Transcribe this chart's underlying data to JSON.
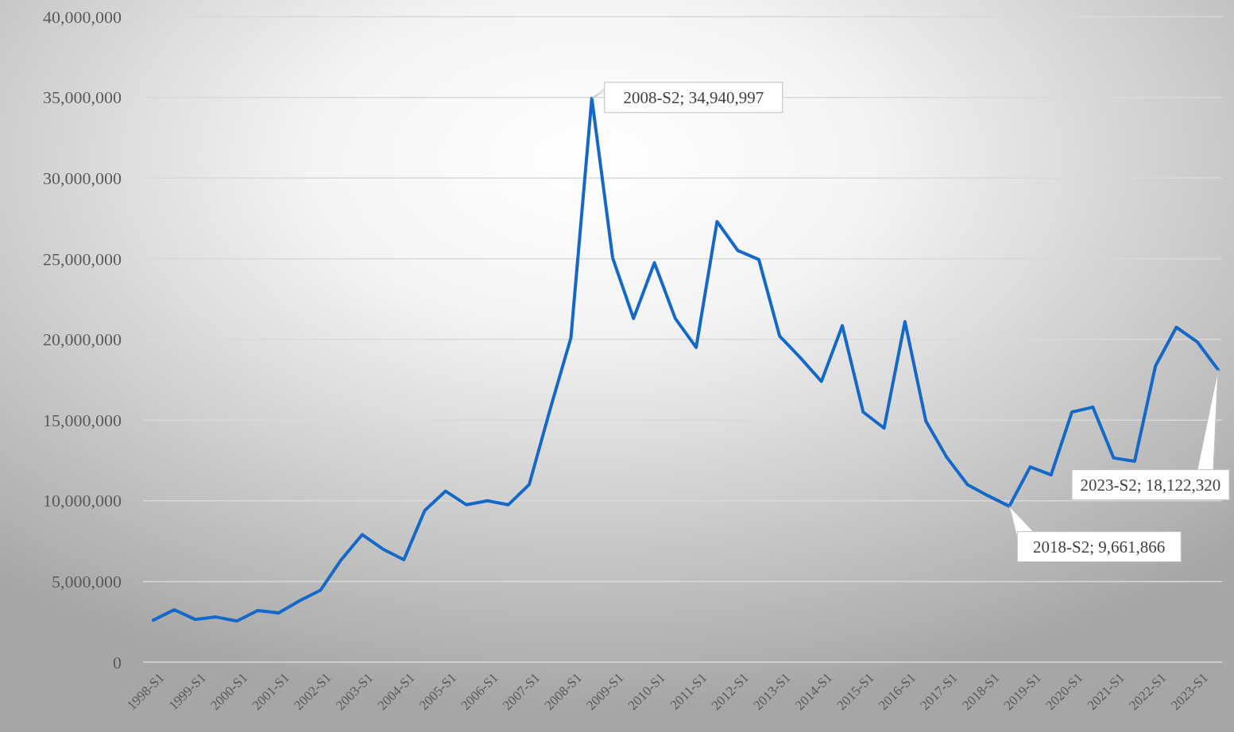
{
  "chart_data": {
    "type": "line",
    "categories": [
      "1998-S1",
      null,
      "1999-S1",
      null,
      "2000-S1",
      null,
      "2001-S1",
      null,
      "2002-S1",
      null,
      "2003-S1",
      null,
      "2004-S1",
      null,
      "2005-S1",
      null,
      "2006-S1",
      null,
      "2007-S1",
      null,
      "2008-S1",
      null,
      "2009-S1",
      null,
      "2010-S1",
      null,
      "2011-S1",
      null,
      "2012-S1",
      null,
      "2013-S1",
      null,
      "2014-S1",
      null,
      "2015-S1",
      null,
      "2016-S1",
      null,
      "2017-S1",
      null,
      "2018-S1",
      null,
      "2019-S1",
      null,
      "2020-S1",
      null,
      "2021-S1",
      null,
      "2022-S1",
      null,
      "2023-S1",
      null
    ],
    "series": [
      {
        "color": "#1469c8",
        "value_labels": [
          null,
          null,
          null,
          null,
          null,
          null,
          null,
          null,
          null,
          null,
          null,
          null,
          null,
          null,
          null,
          null,
          null,
          null,
          null,
          null,
          null,
          "2008-S2; 34,940,997",
          null,
          null,
          null,
          null,
          null,
          null,
          null,
          null,
          null,
          null,
          null,
          null,
          null,
          null,
          null,
          null,
          null,
          null,
          null,
          "2018-S2; 9,661,866",
          null,
          null,
          null,
          null,
          null,
          null,
          null,
          null,
          null,
          "2023-S2; 18,122,320"
        ],
        "values": [
          2600000,
          3250000,
          2650000,
          2800000,
          2550000,
          3200000,
          3050000,
          3800000,
          4450000,
          6350000,
          7900000,
          7000000,
          6350000,
          9400000,
          10600000,
          9750000,
          10000000,
          9750000,
          11000000,
          15650000,
          20100000,
          34940997,
          25050000,
          21300000,
          24750000,
          21300000,
          19500000,
          27300000,
          25500000,
          24950000,
          20200000,
          18850000,
          17400000,
          20850000,
          15500000,
          14500000,
          21100000,
          14950000,
          12700000,
          11000000,
          10300000,
          9661866,
          12100000,
          11600000,
          15500000,
          15800000,
          12650000,
          12450000,
          18350000,
          20750000,
          19850000,
          18122320
        ]
      }
    ],
    "ylim": [
      0,
      40000000
    ],
    "yticks": [
      {
        "value": 0,
        "label": "0"
      },
      {
        "value": 5000000,
        "label": "5,000,000"
      },
      {
        "value": 10000000,
        "label": "10,000,000"
      },
      {
        "value": 15000000,
        "label": "15,000,000"
      },
      {
        "value": 20000000,
        "label": "20,000,000"
      },
      {
        "value": 25000000,
        "label": "25,000,000"
      },
      {
        "value": 30000000,
        "label": "30,000,000"
      },
      {
        "value": 35000000,
        "label": "35,000,000"
      },
      {
        "value": 40000000,
        "label": "40,000,000"
      }
    ],
    "grid": "y",
    "marker": "none",
    "line_style": "solid"
  }
}
